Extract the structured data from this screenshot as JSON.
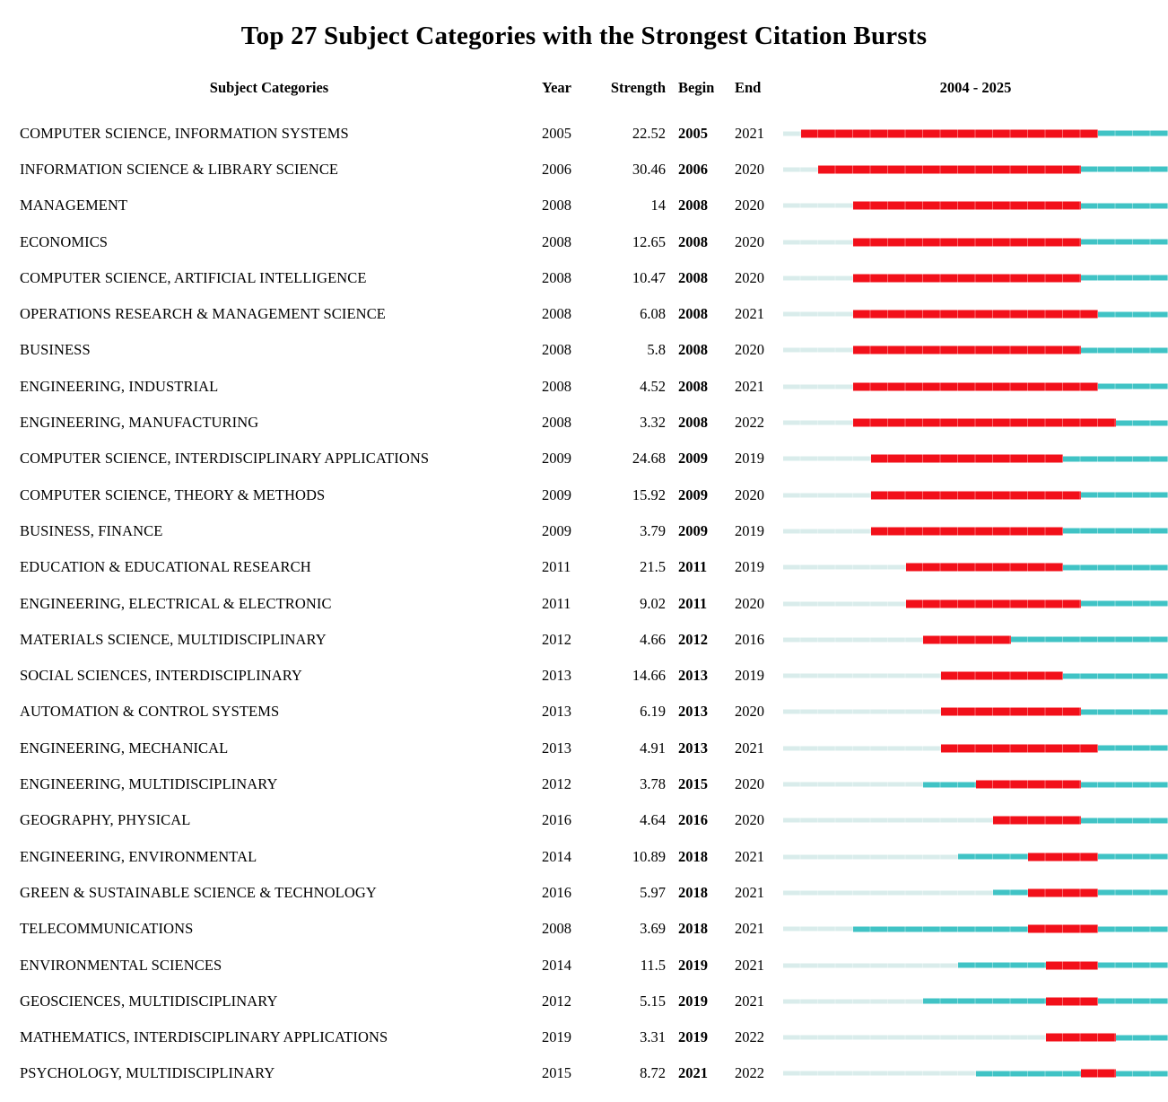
{
  "title": "Top 27 Subject Categories with the Strongest Citation Bursts",
  "header": {
    "subject": "Subject Categories",
    "year": "Year",
    "strength": "Strength",
    "begin": "Begin",
    "end": "End",
    "period": "2004 - 2025"
  },
  "colors": {
    "burst": "#f2101a",
    "active": "#40c3c5",
    "inactive": "#d9eceb",
    "text": "#000000"
  },
  "chart_data": {
    "type": "table",
    "title": "Top 27 Subject Categories with the Strongest Citation Bursts",
    "columns": [
      "Subject Categories",
      "Year",
      "Strength",
      "Begin",
      "End",
      "2004 - 2025"
    ],
    "timeline_range": [
      2004,
      2025
    ],
    "legend": {
      "burst_color_meaning": "burst period (Begin-End)",
      "active_color_meaning": "years in dataset outside burst",
      "inactive_color_meaning": "years before first appearance"
    },
    "rows": [
      {
        "category": "COMPUTER SCIENCE, INFORMATION SYSTEMS",
        "year": 2005,
        "strength": "22.52",
        "begin": 2005,
        "end": 2021
      },
      {
        "category": "INFORMATION SCIENCE & LIBRARY SCIENCE",
        "year": 2006,
        "strength": "30.46",
        "begin": 2006,
        "end": 2020
      },
      {
        "category": "MANAGEMENT",
        "year": 2008,
        "strength": "14",
        "begin": 2008,
        "end": 2020
      },
      {
        "category": "ECONOMICS",
        "year": 2008,
        "strength": "12.65",
        "begin": 2008,
        "end": 2020
      },
      {
        "category": "COMPUTER SCIENCE, ARTIFICIAL INTELLIGENCE",
        "year": 2008,
        "strength": "10.47",
        "begin": 2008,
        "end": 2020
      },
      {
        "category": "OPERATIONS RESEARCH & MANAGEMENT SCIENCE",
        "year": 2008,
        "strength": "6.08",
        "begin": 2008,
        "end": 2021
      },
      {
        "category": "BUSINESS",
        "year": 2008,
        "strength": "5.8",
        "begin": 2008,
        "end": 2020
      },
      {
        "category": "ENGINEERING, INDUSTRIAL",
        "year": 2008,
        "strength": "4.52",
        "begin": 2008,
        "end": 2021
      },
      {
        "category": "ENGINEERING, MANUFACTURING",
        "year": 2008,
        "strength": "3.32",
        "begin": 2008,
        "end": 2022
      },
      {
        "category": "COMPUTER SCIENCE, INTERDISCIPLINARY APPLICATIONS",
        "year": 2009,
        "strength": "24.68",
        "begin": 2009,
        "end": 2019
      },
      {
        "category": "COMPUTER SCIENCE, THEORY & METHODS",
        "year": 2009,
        "strength": "15.92",
        "begin": 2009,
        "end": 2020
      },
      {
        "category": "BUSINESS, FINANCE",
        "year": 2009,
        "strength": "3.79",
        "begin": 2009,
        "end": 2019
      },
      {
        "category": "EDUCATION & EDUCATIONAL RESEARCH",
        "year": 2011,
        "strength": "21.5",
        "begin": 2011,
        "end": 2019
      },
      {
        "category": "ENGINEERING, ELECTRICAL & ELECTRONIC",
        "year": 2011,
        "strength": "9.02",
        "begin": 2011,
        "end": 2020
      },
      {
        "category": "MATERIALS SCIENCE, MULTIDISCIPLINARY",
        "year": 2012,
        "strength": "4.66",
        "begin": 2012,
        "end": 2016
      },
      {
        "category": "SOCIAL SCIENCES, INTERDISCIPLINARY",
        "year": 2013,
        "strength": "14.66",
        "begin": 2013,
        "end": 2019
      },
      {
        "category": "AUTOMATION & CONTROL SYSTEMS",
        "year": 2013,
        "strength": "6.19",
        "begin": 2013,
        "end": 2020
      },
      {
        "category": "ENGINEERING, MECHANICAL",
        "year": 2013,
        "strength": "4.91",
        "begin": 2013,
        "end": 2021
      },
      {
        "category": "ENGINEERING, MULTIDISCIPLINARY",
        "year": 2012,
        "strength": "3.78",
        "begin": 2015,
        "end": 2020
      },
      {
        "category": "GEOGRAPHY, PHYSICAL",
        "year": 2016,
        "strength": "4.64",
        "begin": 2016,
        "end": 2020
      },
      {
        "category": "ENGINEERING, ENVIRONMENTAL",
        "year": 2014,
        "strength": "10.89",
        "begin": 2018,
        "end": 2021
      },
      {
        "category": "GREEN & SUSTAINABLE SCIENCE & TECHNOLOGY",
        "year": 2016,
        "strength": "5.97",
        "begin": 2018,
        "end": 2021
      },
      {
        "category": "TELECOMMUNICATIONS",
        "year": 2008,
        "strength": "3.69",
        "begin": 2018,
        "end": 2021
      },
      {
        "category": "ENVIRONMENTAL SCIENCES",
        "year": 2014,
        "strength": "11.5",
        "begin": 2019,
        "end": 2021
      },
      {
        "category": "GEOSCIENCES, MULTIDISCIPLINARY",
        "year": 2012,
        "strength": "5.15",
        "begin": 2019,
        "end": 2021
      },
      {
        "category": "MATHEMATICS, INTERDISCIPLINARY APPLICATIONS",
        "year": 2019,
        "strength": "3.31",
        "begin": 2019,
        "end": 2022
      },
      {
        "category": "PSYCHOLOGY, MULTIDISCIPLINARY",
        "year": 2015,
        "strength": "8.72",
        "begin": 2021,
        "end": 2022
      }
    ]
  }
}
